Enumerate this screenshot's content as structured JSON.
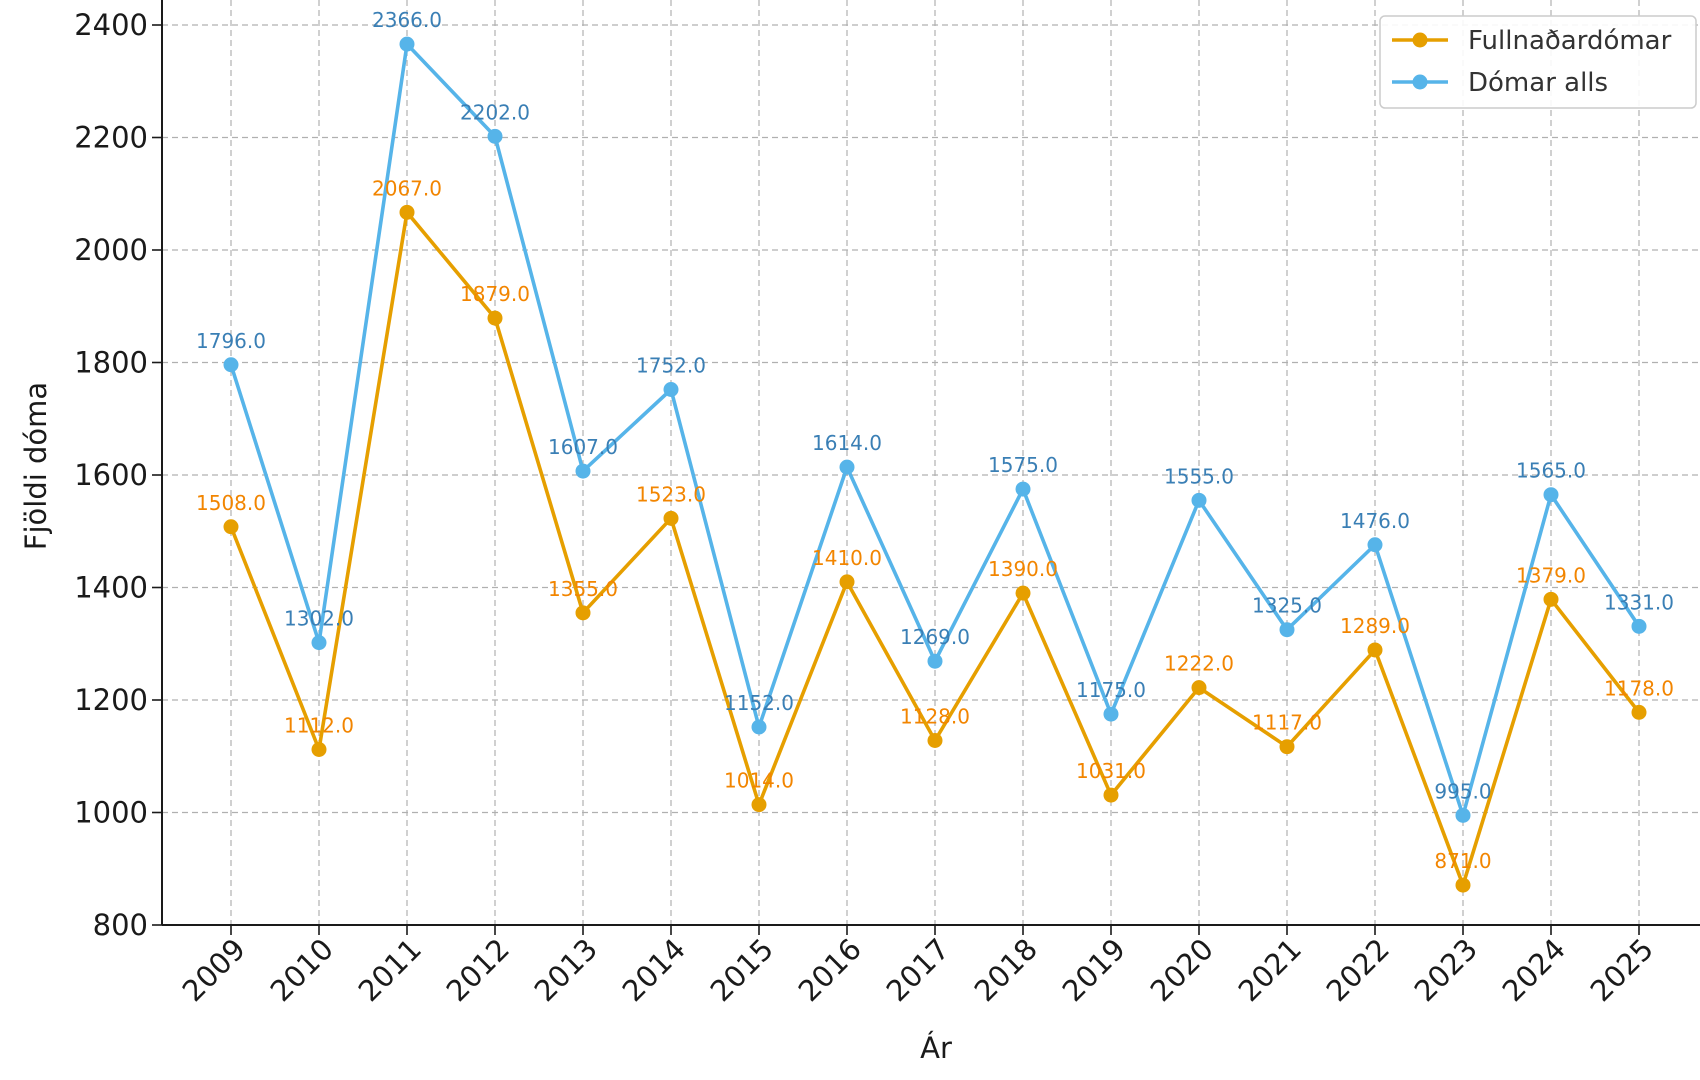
{
  "chart_data": {
    "type": "line",
    "xlabel": "Ár",
    "ylabel": "Fjöldi dóma",
    "ylim": [
      800,
      2400
    ],
    "yticks": [
      800,
      1000,
      1200,
      1400,
      1600,
      1800,
      2000,
      2200,
      2400
    ],
    "grid": true,
    "legend_position": "top-right",
    "x": [
      "2009",
      "2010",
      "2011",
      "2012",
      "2013",
      "2014",
      "2015",
      "2016",
      "2017",
      "2018",
      "2019",
      "2020",
      "2021",
      "2022",
      "2023",
      "2024",
      "2025"
    ],
    "series": [
      {
        "name": "Fullnaðardómar",
        "color": "#E69F00",
        "label_color": "#F28500",
        "values": [
          1508,
          1112,
          2067,
          1879,
          1355,
          1523,
          1014,
          1410,
          1128,
          1390,
          1031,
          1222,
          1117,
          1289,
          871,
          1379,
          1178
        ],
        "labels": [
          "1508.0",
          "1112.0",
          "2067.0",
          "1879.0",
          "1355.0",
          "1523.0",
          "1014.0",
          "1410.0",
          "1128.0",
          "1390.0",
          "1031.0",
          "1222.0",
          "1117.0",
          "1289.0",
          "871.0",
          "1379.0",
          "1178.0"
        ]
      },
      {
        "name": "Dómar alls",
        "color": "#56B4E9",
        "label_color": "#3A7FB5",
        "values": [
          1796,
          1302,
          2366,
          2202,
          1607,
          1752,
          1152,
          1614,
          1269,
          1575,
          1175,
          1555,
          1325,
          1476,
          995,
          1565,
          1331
        ],
        "labels": [
          "1796.0",
          "1302.0",
          "2366.0",
          "2202.0",
          "1607.0",
          "1752.0",
          "1152.0",
          "1614.0",
          "1269.0",
          "1575.0",
          "1175.0",
          "1555.0",
          "1325.0",
          "1476.0",
          "995.0",
          "1565.0",
          "1331.0"
        ]
      }
    ]
  }
}
